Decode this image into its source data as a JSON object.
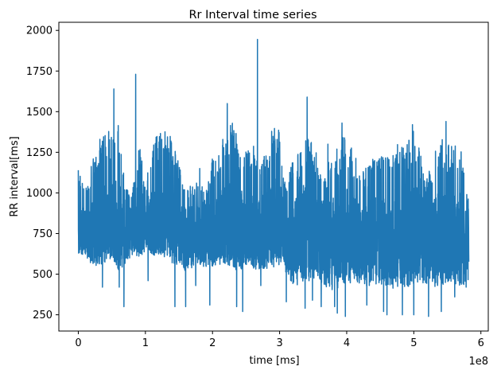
{
  "chart_data": {
    "type": "line",
    "title": "Rr Interval time series",
    "xlabel": "time [ms]",
    "ylabel": "RR interval[ms]",
    "x_offset_text": "1e8",
    "xlim": [
      -0.29,
      6.11
    ],
    "ylim": [
      150,
      2050
    ],
    "xticks": [
      0,
      1,
      2,
      3,
      4,
      5,
      6
    ],
    "xtick_labels": [
      "0",
      "1",
      "2",
      "3",
      "4",
      "5",
      "6"
    ],
    "yticks": [
      250,
      500,
      750,
      1000,
      1250,
      1500,
      1750,
      2000
    ],
    "ytick_labels": [
      "250",
      "500",
      "750",
      "1000",
      "1250",
      "1500",
      "1750",
      "2000"
    ],
    "grid": false,
    "series": [
      {
        "name": "RR interval",
        "color": "#1f77b4",
        "x_range": [
          0,
          5.82
        ],
        "envelope": {
          "x": [
            0.0,
            0.1,
            0.2,
            0.3,
            0.4,
            0.5,
            0.6,
            0.7,
            0.8,
            0.9,
            1.0,
            1.1,
            1.2,
            1.3,
            1.4,
            1.5,
            1.6,
            1.7,
            1.8,
            1.9,
            2.0,
            2.1,
            2.2,
            2.3,
            2.4,
            2.5,
            2.6,
            2.7,
            2.8,
            2.9,
            3.0,
            3.1,
            3.2,
            3.3,
            3.4,
            3.5,
            3.6,
            3.7,
            3.8,
            3.9,
            4.0,
            4.1,
            4.2,
            4.3,
            4.4,
            4.5,
            4.6,
            4.7,
            4.8,
            4.9,
            5.0,
            5.1,
            5.2,
            5.3,
            5.4,
            5.5,
            5.6,
            5.7,
            5.82
          ],
          "upper": [
            1140,
            1060,
            1180,
            1320,
            1380,
            1400,
            1450,
            1050,
            1000,
            1340,
            1050,
            1320,
            1380,
            1400,
            1330,
            1200,
            1000,
            1060,
            1100,
            1000,
            1240,
            1280,
            1380,
            1450,
            1300,
            1260,
            1300,
            1200,
            1260,
            1450,
            1380,
            1100,
            1200,
            1260,
            1400,
            1280,
            1220,
            1180,
            1260,
            1320,
            1400,
            1260,
            1200,
            1150,
            1230,
            1250,
            1230,
            1260,
            1350,
            1300,
            1400,
            1260,
            1100,
            1240,
            1350,
            1300,
            1340,
            1270,
            1000
          ],
          "lower": [
            610,
            620,
            560,
            540,
            560,
            600,
            520,
            560,
            620,
            600,
            620,
            620,
            610,
            580,
            560,
            540,
            520,
            540,
            560,
            530,
            550,
            560,
            560,
            530,
            520,
            560,
            540,
            520,
            530,
            540,
            560,
            500,
            440,
            430,
            450,
            440,
            420,
            400,
            400,
            420,
            440,
            450,
            430,
            420,
            440,
            430,
            420,
            410,
            420,
            420,
            430,
            450,
            440,
            420,
            430,
            440,
            420,
            430,
            440
          ],
          "center": [
            760,
            780,
            760,
            790,
            820,
            830,
            820,
            780,
            790,
            860,
            810,
            820,
            840,
            880,
            840,
            790,
            760,
            770,
            780,
            740,
            780,
            790,
            810,
            820,
            790,
            780,
            790,
            770,
            790,
            830,
            830,
            760,
            740,
            760,
            790,
            760,
            740,
            720,
            720,
            740,
            760,
            740,
            720,
            720,
            730,
            740,
            720,
            720,
            760,
            760,
            770,
            760,
            700,
            720,
            740,
            740,
            740,
            750,
            740
          ]
        },
        "spikes": [
          {
            "x": 0.855,
            "y": 1730
          },
          {
            "x": 2.67,
            "y": 1945
          },
          {
            "x": 0.53,
            "y": 1640
          },
          {
            "x": 3.41,
            "y": 1590
          },
          {
            "x": 2.22,
            "y": 1550
          },
          {
            "x": 1.81,
            "y": 1150
          },
          {
            "x": 3.93,
            "y": 1430
          },
          {
            "x": 3.98,
            "y": 1410
          },
          {
            "x": 4.98,
            "y": 1420
          },
          {
            "x": 5.48,
            "y": 1440
          },
          {
            "x": 3.72,
            "y": 1300
          },
          {
            "x": 4.45,
            "y": 1190
          },
          {
            "x": 0.0,
            "y": 1140
          }
        ],
        "dips": [
          {
            "x": 0.36,
            "y": 420
          },
          {
            "x": 0.61,
            "y": 420
          },
          {
            "x": 0.68,
            "y": 300
          },
          {
            "x": 1.04,
            "y": 460
          },
          {
            "x": 1.44,
            "y": 300
          },
          {
            "x": 1.6,
            "y": 300
          },
          {
            "x": 1.75,
            "y": 430
          },
          {
            "x": 1.96,
            "y": 310
          },
          {
            "x": 2.36,
            "y": 300
          },
          {
            "x": 2.45,
            "y": 270
          },
          {
            "x": 2.72,
            "y": 430
          },
          {
            "x": 3.1,
            "y": 330
          },
          {
            "x": 3.38,
            "y": 290
          },
          {
            "x": 3.49,
            "y": 340
          },
          {
            "x": 3.62,
            "y": 300
          },
          {
            "x": 3.82,
            "y": 300
          },
          {
            "x": 3.86,
            "y": 260
          },
          {
            "x": 3.98,
            "y": 240
          },
          {
            "x": 4.3,
            "y": 310
          },
          {
            "x": 4.55,
            "y": 270
          },
          {
            "x": 4.6,
            "y": 250
          },
          {
            "x": 4.83,
            "y": 250
          },
          {
            "x": 5.0,
            "y": 250
          },
          {
            "x": 5.22,
            "y": 240
          },
          {
            "x": 5.41,
            "y": 270
          },
          {
            "x": 5.61,
            "y": 360
          },
          {
            "x": 5.78,
            "y": 420
          }
        ]
      }
    ]
  }
}
